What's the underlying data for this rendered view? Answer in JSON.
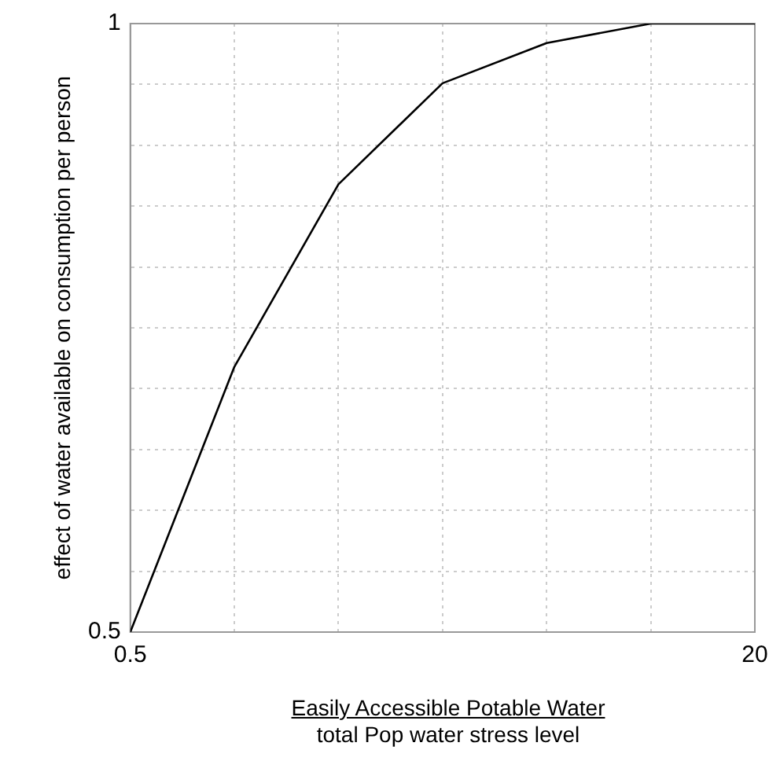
{
  "chart_data": {
    "type": "line",
    "xlabel": "Easily Accessible Potable Water\ntotal Pop water stress level",
    "ylabel": "effect of water available on consumption per person",
    "x": [
      0.5,
      3.75,
      7,
      10.25,
      13.5,
      16.75,
      20
    ],
    "series": [
      {
        "color": "#000000",
        "values": [
          0.5,
          0.718,
          0.868,
          0.951,
          0.984,
          1.0,
          1.0
        ]
      }
    ],
    "xlim": [
      0.5,
      20
    ],
    "xticks": [
      0.5,
      {
        "value": 3.75,
        "label": null
      },
      {
        "value": 7,
        "label": null
      },
      {
        "value": 10.25,
        "label": null
      },
      {
        "value": 13.5,
        "label": null
      },
      {
        "value": 16.75,
        "label": null
      },
      20
    ],
    "ylim": [
      0.5,
      1
    ],
    "yticks": [
      0.5,
      {
        "value": 0.55,
        "label": null
      },
      {
        "value": 0.6,
        "label": null
      },
      {
        "value": 0.65,
        "label": null
      },
      {
        "value": 0.7,
        "label": null
      },
      {
        "value": 0.75,
        "label": null
      },
      {
        "value": 0.8,
        "label": null
      },
      {
        "value": 0.85,
        "label": null
      },
      {
        "value": 0.9,
        "label": null
      },
      {
        "value": 0.95,
        "label": null
      },
      1
    ],
    "grid": true,
    "marker": "none",
    "line_style": "solid",
    "legend": false
  }
}
